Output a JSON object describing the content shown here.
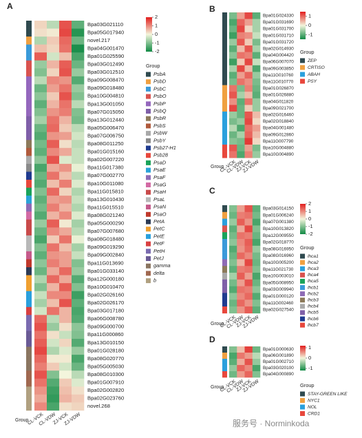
{
  "chart_data": [
    {
      "type": "heatmap",
      "panel": "A",
      "rows": [
        "Bpa03G021110",
        "Bpa05G017940",
        "novel.217",
        "Bpa04G001470",
        "Bpa01G025590",
        "Bpa03G012490",
        "Bpa03G012510",
        "Bpa09G008470",
        "Bpa09G018480",
        "Bpa10G004810",
        "Bpa13G001050",
        "Bpa07G015050",
        "Bpa13G012440",
        "Bpa05G006470",
        "Bpa07G006750",
        "Bpa08G011250",
        "Bpa01G015160",
        "Bpa02G007220",
        "Bpa11G017380",
        "Bpa07G002770",
        "Bpa10G011080",
        "Bpa11G015810",
        "Bpa13G010430",
        "Bpa11G015510",
        "Bpa08G021240",
        "Bpa05G000290",
        "Bpa07G007680",
        "Bpa08G018480",
        "Bpa09G019290",
        "Bpa09G002840",
        "Bpa11G013690",
        "Bpa01G033140",
        "Bpa12G000180",
        "Bpa10G010470",
        "Bpa02G026160",
        "Bpa02G026170",
        "Bpa03G017180",
        "Bpa06G008780",
        "Bpa09G000700",
        "Bpa11G000860",
        "Bpa13G010150",
        "Bpa01G028180",
        "Bpa08G020770",
        "Bpa05G005030",
        "Bpa08G010300",
        "Bpa01G007910",
        "Bpa02G002820",
        "Bpa02G023760",
        "novel.268"
      ],
      "columns": [
        "CL-VCK",
        "CL-VDW",
        "ZJ-VCK",
        "ZJ-VDW"
      ],
      "values": [
        [
          0.3,
          -0.5,
          1.5,
          -1.3
        ],
        [
          0.2,
          0.1,
          1.6,
          -1.8
        ],
        [
          -0.6,
          0.4,
          1.3,
          -1.2
        ],
        [
          0.5,
          0.3,
          1.2,
          -1.9
        ],
        [
          1.4,
          -0.3,
          0.5,
          -1.5
        ],
        [
          -0.8,
          0.6,
          1.4,
          -1.2
        ],
        [
          -1.0,
          0.3,
          1.5,
          -0.8
        ],
        [
          -0.5,
          1.0,
          0.9,
          -1.4
        ],
        [
          -1.2,
          0.8,
          1.2,
          -0.8
        ],
        [
          -0.9,
          0.4,
          1.5,
          -1.0
        ],
        [
          -1.3,
          0.6,
          1.2,
          -0.5
        ],
        [
          -1.0,
          0.9,
          1.1,
          -1.0
        ],
        [
          -0.7,
          1.2,
          0.6,
          -1.1
        ],
        [
          -1.2,
          1.3,
          0.4,
          -0.5
        ],
        [
          -1.4,
          0.9,
          0.8,
          -0.3
        ],
        [
          -1.1,
          1.4,
          0.2,
          -0.5
        ],
        [
          -1.3,
          1.0,
          0.7,
          -0.4
        ],
        [
          -0.9,
          1.5,
          -0.2,
          -0.4
        ],
        [
          -1.5,
          0.7,
          0.9,
          -0.1
        ],
        [
          -1.2,
          1.2,
          0.5,
          -0.5
        ],
        [
          -1.4,
          0.5,
          1.1,
          -0.2
        ],
        [
          -1.0,
          1.3,
          0.3,
          -0.6
        ],
        [
          -1.3,
          0.8,
          0.9,
          -0.4
        ],
        [
          -1.1,
          1.1,
          0.6,
          -0.6
        ],
        [
          -1.4,
          0.6,
          1.0,
          -0.2
        ],
        [
          -0.8,
          1.4,
          0.1,
          -0.7
        ],
        [
          -1.2,
          1.0,
          0.7,
          -0.5
        ],
        [
          -1.5,
          0.4,
          1.2,
          -0.1
        ],
        [
          -1.0,
          1.2,
          0.5,
          -0.7
        ],
        [
          -1.3,
          0.9,
          0.8,
          -0.4
        ],
        [
          -0.9,
          1.1,
          0.8,
          -1.0
        ],
        [
          -1.2,
          0.7,
          1.3,
          -0.8
        ],
        [
          -0.6,
          1.3,
          0.7,
          -1.4
        ],
        [
          -1.0,
          0.6,
          1.4,
          -1.0
        ],
        [
          -0.4,
          1.0,
          1.0,
          -1.6
        ],
        [
          -0.7,
          0.5,
          1.5,
          -1.3
        ],
        [
          -0.3,
          1.2,
          0.6,
          -1.5
        ],
        [
          1.3,
          -0.5,
          0.6,
          -1.4
        ],
        [
          1.5,
          -0.8,
          0.2,
          -0.9
        ],
        [
          1.2,
          0.2,
          -0.4,
          -1.0
        ],
        [
          1.4,
          -0.3,
          0.3,
          -1.4
        ],
        [
          1.6,
          -0.6,
          -0.2,
          -0.8
        ],
        [
          1.3,
          0.1,
          0.1,
          -1.5
        ],
        [
          1.1,
          0.4,
          -0.3,
          -1.2
        ],
        [
          1.5,
          -1.0,
          0.0,
          -0.5
        ],
        [
          1.2,
          -1.4,
          0.4,
          -0.2
        ],
        [
          0.9,
          -1.6,
          0.5,
          0.2
        ],
        [
          0.7,
          -1.7,
          0.6,
          0.4
        ],
        [
          1.0,
          -1.5,
          0.2,
          0.3
        ]
      ],
      "row_groups": [
        "PsbA",
        "PsbA",
        "PsbD",
        "PsbC",
        "PsbC",
        "PsbO",
        "PsbO",
        "PsbP",
        "PsbP",
        "PsbP",
        "PsbP",
        "PsbP",
        "PsbQ",
        "PsbQ",
        "PsbQ",
        "PsbR",
        "PsbS",
        "PsbW",
        "PsbY",
        "Psb27-H1",
        "Psb28",
        "PsaD",
        "PsaE",
        "PsaF",
        "PsaG",
        "PsaH",
        "PsaH",
        "PsaL",
        "PsaL",
        "PsaN",
        "PsaO",
        "PetA",
        "PetC",
        "PetC",
        "PetE",
        "PetE",
        "PetF",
        "PetH",
        "PetH",
        "PetJ",
        "PetJ",
        "gamma",
        "gamma",
        "gamma",
        "delta",
        "delta",
        "b",
        "b",
        "b"
      ],
      "zlim": [
        -2,
        2
      ],
      "zticks": [
        2,
        1,
        0,
        -1,
        -2
      ],
      "colorscale": [
        "#108a44",
        "#f3f5dc",
        "#e21d1d"
      ],
      "legend_title": "Group",
      "legend": [
        "PsbA",
        "PsbD",
        "PsbC",
        "PsbO",
        "PsbP",
        "PsbQ",
        "PsbR",
        "PsbS",
        "PsbW",
        "PsbY",
        "Psb27-H1",
        "Psb28",
        "PsaD",
        "PsaE",
        "PsaF",
        "PsaG",
        "PsaH",
        "PsaL",
        "PsaN",
        "PsaO",
        "PetA",
        "PetC",
        "PetE",
        "PetF",
        "PetH",
        "PetJ",
        "gamma",
        "delta",
        "b"
      ],
      "legend_colors": [
        "#2f4a4f",
        "#f0a040",
        "#3a9ad9",
        "#d9534f",
        "#9467bd",
        "#7f5fa8",
        "#8c7a5a",
        "#b05a3c",
        "#a9a9a9",
        "#8a8a8a",
        "#1f3b8f",
        "#e8473c",
        "#1aa35a",
        "#29a3d9",
        "#8e6bb5",
        "#d36aa4",
        "#c94a4a",
        "#b8b8b8",
        "#c55a8a",
        "#c0392b",
        "#2b3a55",
        "#f0a030",
        "#2aa0dd",
        "#d94040",
        "#7a6bb0",
        "#6a5a95",
        "#8a7560",
        "#a06850",
        "#b0a080"
      ],
      "group_label": "Group"
    },
    {
      "type": "heatmap",
      "panel": "B",
      "rows": [
        "Bpa01G024330",
        "Bpa01G031690",
        "Bpa01G031700",
        "Bpa01G031710",
        "Bpa01G031720",
        "Bpa02G014930",
        "Bpa04G004420",
        "Bpa06G007070",
        "Bpa09G003850",
        "Bpa11G010760",
        "Bpa11G010770",
        "Bpa01G026870",
        "Bpa01G026880",
        "Bpa04G011820",
        "Bpa09G021700",
        "Bpa02G016460",
        "Bpa02G018840",
        "Bpa04G001480",
        "Bpa09G012860",
        "Bpa11G007790",
        "Bpa10G004880",
        "Bpa10G004890"
      ],
      "columns": [
        "CL-VCK",
        "CL-VDW",
        "ZJ-VCK",
        "ZJ-VDW"
      ],
      "values": [
        [
          -0.8,
          0.6,
          1.2,
          -1.0
        ],
        [
          -1.1,
          1.0,
          0.6,
          -0.5
        ],
        [
          -0.9,
          1.2,
          0.2,
          -0.5
        ],
        [
          -1.2,
          0.8,
          0.7,
          -0.3
        ],
        [
          -0.6,
          1.1,
          0.3,
          -0.8
        ],
        [
          -1.0,
          0.4,
          1.1,
          -0.5
        ],
        [
          -0.7,
          0.9,
          0.8,
          -1.0
        ],
        [
          -1.2,
          0.3,
          1.2,
          -0.3
        ],
        [
          -0.5,
          1.2,
          0.4,
          -1.1
        ],
        [
          -1.0,
          0.6,
          1.0,
          -0.6
        ],
        [
          -0.8,
          0.9,
          0.7,
          -0.8
        ],
        [
          0.9,
          -0.8,
          0.8,
          -0.9
        ],
        [
          1.1,
          -0.5,
          0.4,
          -1.0
        ],
        [
          0.7,
          -1.0,
          0.9,
          -0.6
        ],
        [
          1.2,
          -0.9,
          0.3,
          -0.6
        ],
        [
          -0.6,
          -0.9,
          1.1,
          0.4
        ],
        [
          -0.8,
          -0.6,
          1.2,
          0.2
        ],
        [
          -0.4,
          -1.1,
          0.9,
          0.6
        ],
        [
          -0.9,
          -0.5,
          1.0,
          0.4
        ],
        [
          -0.7,
          -0.8,
          1.3,
          0.2
        ],
        [
          1.1,
          -0.9,
          0.6,
          -0.8
        ],
        [
          0.9,
          -1.1,
          0.8,
          -0.6
        ]
      ],
      "row_groups": [
        "ZEP",
        "ZEP",
        "ZEP",
        "ZEP",
        "ZEP",
        "ZEP",
        "ZEP",
        "ZEP",
        "ZEP",
        "ZEP",
        "ZEP",
        "CRTISO",
        "CRTISO",
        "CRTISO",
        "CRTISO",
        "ABAH",
        "ABAH",
        "ABAH",
        "ABAH",
        "ABAH",
        "PSY",
        "PSY"
      ],
      "zlim": [
        -1.5,
        1.5
      ],
      "zticks": [
        1,
        0,
        -1
      ],
      "colorscale": [
        "#108a44",
        "#f3f5dc",
        "#e21d1d"
      ],
      "legend_title": "Group",
      "legend": [
        "ZEP",
        "CRTISO",
        "ABAH",
        "PSY"
      ],
      "legend_colors": [
        "#2f4a4f",
        "#f0a040",
        "#2aa0dd",
        "#e8473c"
      ],
      "group_label": "Group"
    },
    {
      "type": "heatmap",
      "panel": "C",
      "rows": [
        "Bpa03G014150",
        "Bpa01G006240",
        "Bpa07G001380",
        "Bpa10G013820",
        "Bpa12G009550",
        "Bpa02G018770",
        "Bpa08G016950",
        "Bpa08G016960",
        "Bpa10G005200",
        "Bpa11G021730",
        "Bpa10G003010",
        "Bpa05G008950",
        "Bpa03G009940",
        "Bpa01G000120",
        "Bpa11G002460",
        "Bpa02G027540"
      ],
      "columns": [
        "CL-VCK",
        "CL-VDW",
        "ZJ-VCK",
        "ZJ-VDW"
      ],
      "values": [
        [
          -1.0,
          0.8,
          1.5,
          -1.3
        ],
        [
          -1.2,
          1.1,
          1.2,
          -1.1
        ],
        [
          -0.8,
          1.4,
          0.9,
          -1.5
        ],
        [
          -1.3,
          0.7,
          1.6,
          -1.0
        ],
        [
          -1.1,
          1.2,
          1.1,
          -1.2
        ],
        [
          -0.9,
          1.0,
          1.4,
          -1.5
        ],
        [
          -1.4,
          0.9,
          1.3,
          -0.8
        ],
        [
          -1.2,
          1.3,
          1.0,
          -1.1
        ],
        [
          -1.0,
          0.6,
          1.6,
          -1.2
        ],
        [
          -1.3,
          1.1,
          1.2,
          -1.0
        ],
        [
          -0.7,
          1.4,
          0.8,
          -1.5
        ],
        [
          -1.1,
          0.8,
          1.5,
          -1.2
        ],
        [
          -1.4,
          1.2,
          1.1,
          -0.9
        ],
        [
          -0.9,
          1.0,
          1.3,
          -1.4
        ],
        [
          -1.2,
          1.3,
          0.9,
          -1.0
        ],
        [
          -1.0,
          0.9,
          1.4,
          -1.3
        ]
      ],
      "row_groups": [
        "lhca1",
        "lhca2",
        "lhca3",
        "lhca4",
        "lhca5",
        "lhcb1",
        "lhcb1",
        "lhcb1",
        "lhcb2",
        "lhcb3",
        "lhcb4",
        "lhcb5",
        "lhcb5",
        "lhcb6",
        "lhcb6",
        "lhcb7"
      ],
      "zlim": [
        -2,
        2
      ],
      "zticks": [
        2,
        1,
        0,
        -1,
        -2
      ],
      "colorscale": [
        "#108a44",
        "#f3f5dc",
        "#e21d1d"
      ],
      "legend_title": "Group",
      "legend": [
        "lhca1",
        "lhca2",
        "lhca3",
        "lhca4",
        "lhca5",
        "lhcb1",
        "lhcb2",
        "lhcb3",
        "lhcb4",
        "lhcb5",
        "lhcb6",
        "lhcb7"
      ],
      "legend_colors": [
        "#2f4a4f",
        "#f0a040",
        "#2aa0dd",
        "#d9534f",
        "#1aa35a",
        "#3a9ad9",
        "#8e6bb5",
        "#8c7a5a",
        "#a9a9a9",
        "#7f5fa8",
        "#1f3b8f",
        "#e8473c"
      ],
      "group_label": "Group"
    },
    {
      "type": "heatmap",
      "panel": "D",
      "rows": [
        "Bpa01G000630",
        "Bpa06G001890",
        "Bpa01G002710",
        "Bpa03G020100",
        "Bpa04G000890"
      ],
      "columns": [
        "CL-VCK",
        "CL-VDW",
        "ZJ-VCK",
        "ZJ-VDW"
      ],
      "values": [
        [
          -0.6,
          0.3,
          1.0,
          -0.7
        ],
        [
          -0.9,
          0.7,
          0.5,
          -0.3
        ],
        [
          -0.8,
          0.4,
          0.9,
          -0.5
        ],
        [
          -0.5,
          0.8,
          0.6,
          -0.9
        ],
        [
          -0.7,
          0.5,
          0.8,
          -0.6
        ]
      ],
      "row_groups": [
        "STAY-GREEN LIKE",
        "NYC1",
        "NOL",
        "NOL",
        "CRD1"
      ],
      "zlim": [
        -1.2,
        1.2
      ],
      "zticks": [
        1,
        0,
        -1
      ],
      "colorscale": [
        "#108a44",
        "#f3f5dc",
        "#e21d1d"
      ],
      "legend_title": "Group",
      "legend": [
        "STAY-GREEN LIKE",
        "NYC1",
        "NOL",
        "CRD1"
      ],
      "legend_colors": [
        "#2f4a4f",
        "#f0a040",
        "#2aa0dd",
        "#e8473c"
      ],
      "group_label": "Group"
    }
  ],
  "watermark": "服务号 · Norminkoda"
}
